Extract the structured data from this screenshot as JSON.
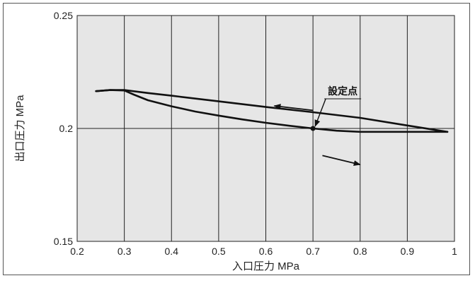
{
  "chart_data": {
    "type": "line",
    "title": "",
    "xlabel": "入口圧力 MPa",
    "ylabel": "出口圧力 MPa",
    "xlim": [
      0.2,
      1.0
    ],
    "ylim": [
      0.15,
      0.25
    ],
    "x_ticks": [
      0.2,
      0.3,
      0.4,
      0.5,
      0.6,
      0.7,
      0.8,
      0.9,
      1.0
    ],
    "x_tick_labels": [
      "0.2",
      "0.3",
      "0.4",
      "0.5",
      "0.6",
      "0.7",
      "0.8",
      "0.9",
      "1"
    ],
    "y_tick_labels": [
      {
        "value": 0.25,
        "label": "0.25"
      },
      {
        "value": 0.2,
        "label": "0.2"
      },
      {
        "value": 0.15,
        "label": "0.15"
      }
    ],
    "grid": "vertical lines at each x tick; horizontal line at 0.2",
    "background_color": "#e6e6e6",
    "line_color": "#111111",
    "series": [
      {
        "direction": "decreasing inlet pressure",
        "x": [
          0.24,
          0.27,
          0.3,
          0.35,
          0.4,
          0.5,
          0.6,
          0.7,
          0.8,
          0.9,
          0.985
        ],
        "y": [
          0.2165,
          0.217,
          0.217,
          0.2157,
          0.2145,
          0.212,
          0.2095,
          0.2072,
          0.2047,
          0.2013,
          0.1985
        ]
      },
      {
        "direction": "increasing inlet pressure",
        "x": [
          0.24,
          0.27,
          0.3,
          0.32,
          0.35,
          0.4,
          0.45,
          0.5,
          0.55,
          0.6,
          0.65,
          0.7,
          0.75,
          0.8,
          0.9,
          0.985
        ],
        "y": [
          0.2165,
          0.217,
          0.2168,
          0.215,
          0.2125,
          0.2098,
          0.2075,
          0.2057,
          0.204,
          0.2025,
          0.2012,
          0.2,
          0.199,
          0.1985,
          0.1985,
          0.1985
        ]
      }
    ],
    "annotations": [
      {
        "text": "設定点",
        "point": {
          "x": 0.7,
          "y": 0.2
        }
      }
    ],
    "direction_arrows": [
      {
        "from": [
          0.7,
          0.208
        ],
        "to": [
          0.618,
          0.21
        ],
        "meaning": "decreasing inlet pressure"
      },
      {
        "from": [
          0.72,
          0.188
        ],
        "to": [
          0.8,
          0.184
        ],
        "meaning": "increasing inlet pressure"
      }
    ]
  }
}
